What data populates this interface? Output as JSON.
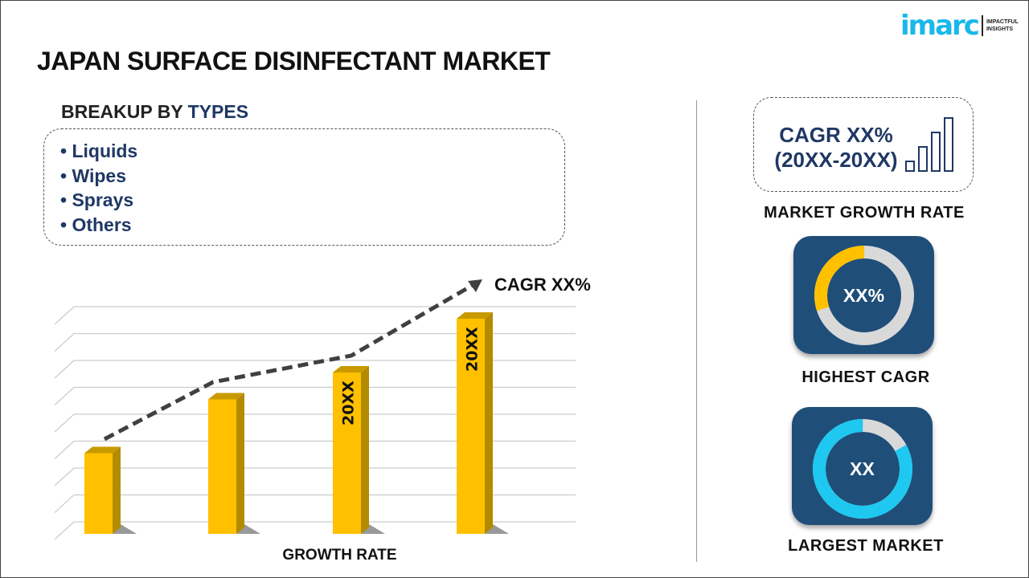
{
  "logo": {
    "word": "imarc",
    "tagline_1": "IMPACTFUL",
    "tagline_2": "INSIGHTS"
  },
  "title": "JAPAN SURFACE DISINFECTANT MARKET",
  "breakup": {
    "prefix": "BREAKUP BY ",
    "highlight": "TYPES",
    "items": [
      "Liquids",
      "Wipes",
      "Sprays",
      "Others"
    ]
  },
  "market_growth": {
    "cagr": "CAGR XX%",
    "period": "(20XX-20XX)",
    "label": "MARKET GROWTH RATE",
    "icon": "bar-growth-icon"
  },
  "highest_cagr": {
    "value": "XX%",
    "label": "HIGHEST CAGR",
    "highlight_fraction": 0.3
  },
  "largest_market": {
    "value": "XX",
    "label": "LARGEST MARKET",
    "highlight_fraction": 0.83
  },
  "colors": {
    "navy": "#1f3864",
    "tile": "#1f4e79",
    "bar": "#ffc000",
    "bar_side": "#b38b00",
    "cyan": "#1ec8f0",
    "ring_gray": "#d9d9d9"
  },
  "chart_data": {
    "type": "bar",
    "categories": [
      "",
      "",
      "",
      ""
    ],
    "values": [
      3,
      5,
      6,
      8
    ],
    "bar_labels": [
      "",
      "",
      "20XX",
      "20XX"
    ],
    "xlabel": "GROWTH RATE",
    "trend_label": "CAGR XX%",
    "ylim": [
      0,
      8.5
    ],
    "grid": true
  }
}
